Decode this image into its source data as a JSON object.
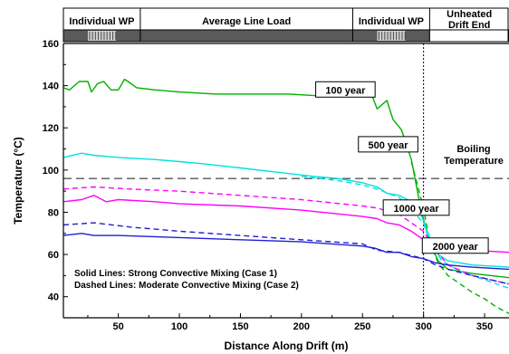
{
  "chart_data": {
    "type": "line",
    "xlabel": "Distance Along Drift  (m)",
    "ylabel": "Temperature  (°C)",
    "xlim": [
      5,
      370
    ],
    "ylim": [
      30,
      160
    ],
    "xticks": [
      50,
      100,
      150,
      200,
      250,
      300,
      350
    ],
    "yticks": [
      40,
      60,
      80,
      100,
      120,
      140,
      160
    ],
    "top_band": [
      {
        "label": "Individual WP",
        "x0": 5,
        "x1": 68,
        "hatched": [
          25,
          48
        ]
      },
      {
        "label": "Average Line Load",
        "x0": 68,
        "x1": 242,
        "hatched": null
      },
      {
        "label": "Individual WP",
        "x0": 242,
        "x1": 305,
        "hatched": [
          262,
          285
        ]
      },
      {
        "label": "Unheated\nDrift End",
        "x0": 305,
        "x1": 370,
        "hatched": null
      }
    ],
    "reference_lines": [
      {
        "orientation": "horizontal",
        "value": 96,
        "style": "dashed",
        "color": "#555555",
        "label": "Boiling\nTemperature"
      },
      {
        "orientation": "vertical",
        "value": 300,
        "style": "dotted",
        "color": "#000000"
      }
    ],
    "series": [
      {
        "name": "100 year",
        "case": 1,
        "color": "#00b000",
        "dashed": false,
        "x": [
          5,
          10,
          18,
          25,
          28,
          33,
          38,
          44,
          50,
          55,
          58,
          65,
          80,
          100,
          130,
          160,
          190,
          220,
          250,
          258,
          262,
          270,
          275,
          282,
          290,
          298,
          305,
          312,
          320,
          340,
          370
        ],
        "y": [
          139,
          138,
          142,
          142,
          137,
          141,
          142,
          138,
          138,
          143,
          142,
          139,
          138,
          137,
          136,
          136,
          136,
          135,
          137,
          135,
          129,
          133,
          124,
          119,
          105,
          81,
          66,
          57,
          53,
          51,
          49
        ]
      },
      {
        "name": "",
        "case": 2,
        "color": "#00b000",
        "dashed": true,
        "x": [
          290,
          300,
          305,
          312,
          320,
          330,
          340,
          350,
          360,
          370
        ],
        "y": [
          104,
          82,
          66,
          56,
          50,
          46,
          42,
          39,
          35,
          32
        ]
      },
      {
        "name": "500 year",
        "case": 1,
        "color": "#00e0e0",
        "dashed": false,
        "x": [
          5,
          20,
          30,
          50,
          80,
          100,
          120,
          150,
          180,
          210,
          230,
          250,
          262,
          270,
          280,
          290,
          298,
          305,
          312,
          320,
          340,
          370
        ],
        "y": [
          106,
          108,
          107,
          106,
          105,
          104,
          103,
          101,
          99,
          97,
          96,
          94,
          92,
          89,
          88,
          85,
          79,
          68,
          60,
          57,
          55,
          54
        ]
      },
      {
        "name": "",
        "case": 2,
        "color": "#00e0e0",
        "dashed": true,
        "x": [
          200,
          230,
          250,
          262,
          280,
          300,
          305,
          315,
          330,
          350,
          370
        ],
        "y": [
          97,
          95,
          93,
          91,
          87,
          75,
          66,
          57,
          52,
          48,
          44
        ]
      },
      {
        "name": "1000 year",
        "case": 1,
        "color": "#ff00ff",
        "dashed": false,
        "x": [
          5,
          20,
          30,
          40,
          50,
          80,
          100,
          150,
          200,
          250,
          262,
          270,
          280,
          290,
          300,
          308,
          320,
          340,
          370
        ],
        "y": [
          85,
          86,
          88,
          85,
          86,
          85,
          84,
          83,
          81,
          78,
          77,
          75,
          74,
          71,
          67,
          65,
          63,
          62,
          61
        ]
      },
      {
        "name": "",
        "case": 2,
        "color": "#ff00ff",
        "dashed": true,
        "x": [
          5,
          30,
          60,
          100,
          150,
          200,
          250,
          262,
          280,
          300,
          310,
          320,
          340,
          370
        ],
        "y": [
          91,
          92,
          91,
          90,
          88,
          86,
          83,
          82,
          79,
          71,
          62,
          55,
          50,
          46
        ]
      },
      {
        "name": "2000 year",
        "case": 1,
        "color": "#2020d0",
        "dashed": false,
        "x": [
          5,
          20,
          30,
          50,
          100,
          150,
          200,
          250,
          260,
          270,
          280,
          290,
          300,
          310,
          320,
          340,
          370
        ],
        "y": [
          69,
          70,
          69,
          69,
          68,
          67,
          66,
          64,
          63,
          61,
          61,
          59,
          58,
          56,
          55,
          54,
          53
        ]
      },
      {
        "name": "",
        "case": 2,
        "color": "#2020d0",
        "dashed": true,
        "x": [
          5,
          30,
          60,
          100,
          150,
          200,
          250,
          262,
          280,
          300,
          310,
          320,
          340,
          370
        ],
        "y": [
          74,
          75,
          73,
          71,
          69,
          67,
          65,
          62,
          61,
          58,
          55,
          53,
          50,
          46
        ]
      }
    ],
    "annotations": [
      "Solid Lines: Strong Convective Mixing (Case 1)",
      "Dashed Lines: Moderate Convective Mixing (Case 2)"
    ]
  }
}
